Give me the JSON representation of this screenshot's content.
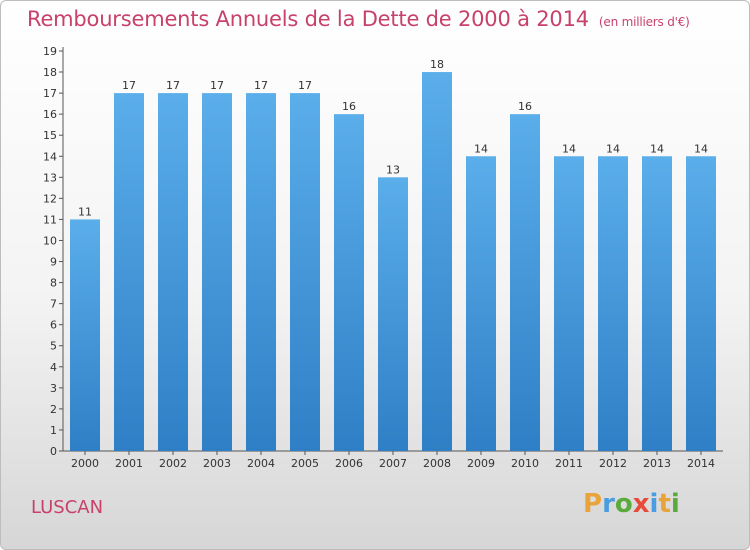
{
  "header": {
    "title": "Remboursements Annuels de la Dette de 2000 à 2014",
    "unit": "(en milliers d'€)"
  },
  "footer": {
    "commune": "LUSCAN",
    "logo": "Proxiti"
  },
  "colors": {
    "title": "#c8416b",
    "bar_top": "#5aaeea",
    "bar_bottom": "#2f7fc6",
    "logo_letters": [
      "#e8a33a",
      "#4a9ee0",
      "#5aaa3c",
      "#e84a3a",
      "#4a9ee0",
      "#e8a33a",
      "#5aaa3c"
    ]
  },
  "chart_data": {
    "type": "bar",
    "title": "Remboursements Annuels de la Dette de 2000 à 2014",
    "subtitle": "(en milliers d'€)",
    "categories": [
      "2000",
      "2001",
      "2002",
      "2003",
      "2004",
      "2005",
      "2006",
      "2007",
      "2008",
      "2009",
      "2010",
      "2011",
      "2012",
      "2013",
      "2014"
    ],
    "values": [
      11,
      17,
      17,
      17,
      17,
      17,
      16,
      13,
      18,
      14,
      16,
      14,
      14,
      14,
      14
    ],
    "ylim": [
      0,
      19
    ],
    "yticks": [
      "0",
      "1",
      "2",
      "3",
      "4",
      "5",
      "6",
      "7",
      "8",
      "9",
      "10",
      "11",
      "12",
      "13",
      "14",
      "15",
      "16",
      "17",
      "18",
      "19"
    ],
    "grid": false,
    "data_labels": true
  }
}
